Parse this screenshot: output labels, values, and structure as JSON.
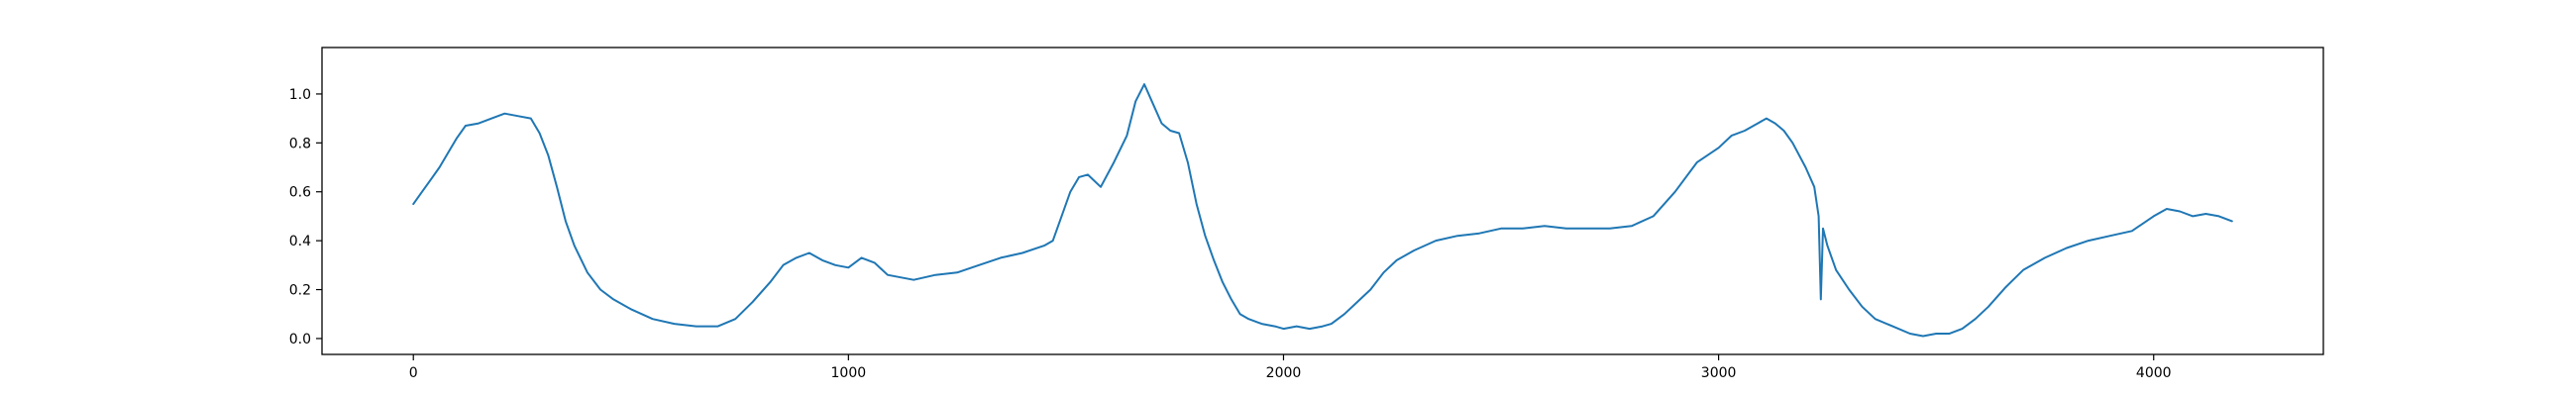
{
  "chart_data": {
    "type": "line",
    "title": "",
    "xlabel": "",
    "ylabel": "",
    "xlim": [
      -210,
      4390
    ],
    "ylim": [
      -0.065,
      1.19
    ],
    "grid": false,
    "x_ticks": [
      0,
      1000,
      2000,
      3000,
      4000
    ],
    "x_tick_labels": [
      "0",
      "1000",
      "2000",
      "3000",
      "4000"
    ],
    "y_ticks": [
      0.0,
      0.2,
      0.4,
      0.6,
      0.8,
      1.0
    ],
    "y_tick_labels": [
      "0.0",
      "0.2",
      "0.4",
      "0.6",
      "0.8",
      "1.0"
    ],
    "series": [
      {
        "color": "#1f77b4",
        "x": [
          0,
          20,
          40,
          60,
          80,
          100,
          120,
          150,
          180,
          210,
          240,
          270,
          290,
          310,
          330,
          350,
          370,
          400,
          430,
          460,
          500,
          550,
          600,
          650,
          700,
          740,
          780,
          820,
          850,
          880,
          910,
          940,
          970,
          1000,
          1030,
          1060,
          1090,
          1120,
          1150,
          1200,
          1250,
          1300,
          1350,
          1400,
          1450,
          1470,
          1490,
          1510,
          1530,
          1550,
          1580,
          1610,
          1640,
          1660,
          1680,
          1700,
          1720,
          1740,
          1760,
          1780,
          1800,
          1820,
          1840,
          1860,
          1880,
          1900,
          1920,
          1950,
          1980,
          2000,
          2030,
          2060,
          2090,
          2110,
          2140,
          2170,
          2200,
          2230,
          2260,
          2300,
          2350,
          2400,
          2450,
          2500,
          2550,
          2600,
          2650,
          2700,
          2750,
          2800,
          2850,
          2900,
          2950,
          3000,
          3030,
          3060,
          3090,
          3110,
          3130,
          3150,
          3170,
          3200,
          3220,
          3230,
          3235,
          3240,
          3250,
          3270,
          3300,
          3330,
          3360,
          3400,
          3440,
          3470,
          3500,
          3530,
          3560,
          3590,
          3620,
          3660,
          3700,
          3750,
          3800,
          3850,
          3900,
          3950,
          4000,
          4030,
          4060,
          4090,
          4120,
          4150,
          4180
        ],
        "y": [
          0.55,
          0.6,
          0.65,
          0.7,
          0.76,
          0.82,
          0.87,
          0.88,
          0.9,
          0.92,
          0.91,
          0.9,
          0.84,
          0.75,
          0.62,
          0.48,
          0.38,
          0.27,
          0.2,
          0.16,
          0.12,
          0.08,
          0.06,
          0.05,
          0.05,
          0.08,
          0.15,
          0.23,
          0.3,
          0.33,
          0.35,
          0.32,
          0.3,
          0.29,
          0.33,
          0.31,
          0.26,
          0.25,
          0.24,
          0.26,
          0.27,
          0.3,
          0.33,
          0.35,
          0.38,
          0.4,
          0.5,
          0.6,
          0.66,
          0.67,
          0.62,
          0.72,
          0.83,
          0.97,
          1.04,
          0.96,
          0.88,
          0.85,
          0.84,
          0.72,
          0.55,
          0.42,
          0.32,
          0.23,
          0.16,
          0.1,
          0.08,
          0.06,
          0.05,
          0.04,
          0.05,
          0.04,
          0.05,
          0.06,
          0.1,
          0.15,
          0.2,
          0.27,
          0.32,
          0.36,
          0.4,
          0.42,
          0.43,
          0.45,
          0.45,
          0.46,
          0.45,
          0.45,
          0.45,
          0.46,
          0.5,
          0.6,
          0.72,
          0.78,
          0.83,
          0.85,
          0.88,
          0.9,
          0.88,
          0.85,
          0.8,
          0.7,
          0.62,
          0.5,
          0.16,
          0.45,
          0.38,
          0.28,
          0.2,
          0.13,
          0.08,
          0.05,
          0.02,
          0.01,
          0.02,
          0.02,
          0.04,
          0.08,
          0.13,
          0.21,
          0.28,
          0.33,
          0.37,
          0.4,
          0.42,
          0.44,
          0.5,
          0.53,
          0.52,
          0.5,
          0.51,
          0.5,
          0.48
        ]
      }
    ]
  }
}
